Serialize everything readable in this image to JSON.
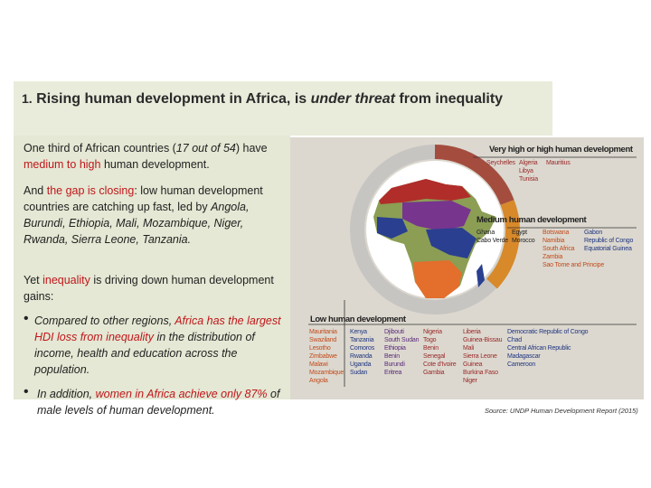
{
  "slide": {
    "title_number": "1.",
    "title_part1": "Rising human development in Africa, is ",
    "title_italic": "under threat",
    "title_part2": " from inequality",
    "p1_a": "One third of African countries (",
    "p1_b": "17 out of 54",
    "p1_c": ") have ",
    "p1_d": "medium to high",
    "p1_e": " human development.",
    "p2_a": "And ",
    "p2_b": "the gap is closing",
    "p2_c": ": low human development countries are catching up fast, led by ",
    "p2_d": "Angola, Burundi, Ethiopia, Mali, Mozambique, Niger, Rwanda, Sierra Leone, Tanzania.",
    "p3_a": "Yet ",
    "p3_b": "inequality",
    "p3_c": " is driving down human development gains:",
    "b1_a": "Compared to other regions, ",
    "b1_b": "Africa has the largest HDI loss from inequality",
    "b1_c": " in the distribution of income, health and education across the population.",
    "b2_a": "In addition, ",
    "b2_b": "women in Africa achieve only 87%",
    "b2_c": " of male levels of human development.",
    "bullet_char": "•",
    "source": "Source: UNDP Human Development Report (2015)"
  },
  "map": {
    "very_high": {
      "heading": "Very high or high human development",
      "col1": [
        "Seychelles"
      ],
      "col2": [
        "Algeria",
        "Libya",
        "Tunisia"
      ],
      "col3": [
        "Mauritius"
      ]
    },
    "medium": {
      "heading": "Medium human development",
      "col1": [
        "Ghana",
        "Cabo Verde"
      ],
      "col2": [
        "Egypt",
        "Morocco"
      ],
      "col3": [
        "Botswana",
        "Namibia",
        "South Africa",
        "Zambia",
        "Sao Tome and Principe"
      ],
      "col4": [
        "Gabon",
        "Republic of Congo",
        "Equatorial Guinea"
      ]
    },
    "low": {
      "heading": "Low human development",
      "col1": [
        "Mauritania",
        "Swaziland",
        "Lesotho",
        "Zimbabwe",
        "Malawi",
        "Mozambique",
        "Angola"
      ],
      "col2": [
        "Kenya",
        "Tanzania",
        "Comoros",
        "Rwanda",
        "Uganda",
        "Sudan"
      ],
      "col3": [
        "Djibouti",
        "South Sudan",
        "Ethiopia",
        "Benin",
        "Burundi",
        "Eritrea"
      ],
      "col4": [
        "Nigeria",
        "Togo",
        "Benin",
        "Senegal",
        "Cote d'Ivoire",
        "Gambia"
      ],
      "col5": [
        "Liberia",
        "Guinea-Bissau",
        "Mali",
        "Sierra Leone",
        "Guinea",
        "Burkina Faso",
        "Niger"
      ],
      "col6": [
        "Democratic Republic of Congo",
        "Chad",
        "Central African Republic",
        "Madagascar",
        "Cameroon"
      ]
    },
    "colors": {
      "very_high": "#9a2a2a",
      "medium": "#e27a33",
      "low": "#223c8e",
      "low_alt": "#6a2f86",
      "donut_grey": "#c6c5c2",
      "donut_orange": "#d8892a",
      "donut_brown": "#a44d3e",
      "land_green": "#8b9e54",
      "land_purple": "#77358e",
      "land_blue": "#2a3f90",
      "land_orange": "#e46e2c",
      "land_red": "#b02d2a"
    }
  }
}
